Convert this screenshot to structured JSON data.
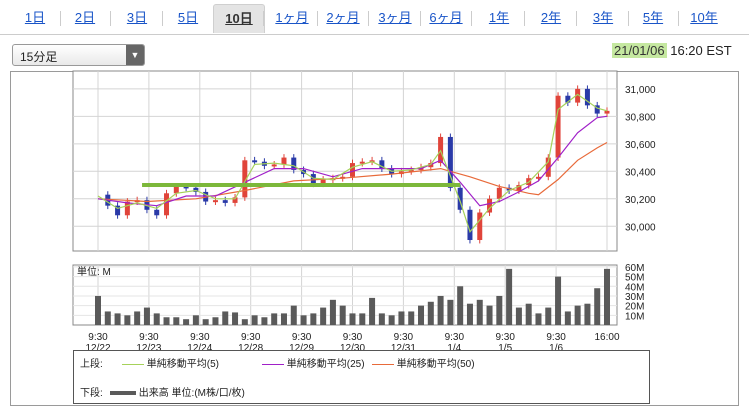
{
  "tabs": [
    "1日",
    "2日",
    "3日",
    "5日",
    "10日",
    "1ヶ月",
    "2ヶ月",
    "3ヶ月",
    "6ヶ月",
    "1年",
    "2年",
    "3年",
    "5年",
    "10年"
  ],
  "active_tab": "10日",
  "interval": {
    "label": "15分足"
  },
  "timestamp": {
    "date": "21/01/06",
    "time": "16:20 EST"
  },
  "colors": {
    "ma5": "#a6d25a",
    "ma25": "#a020c8",
    "ma50": "#e86a3a",
    "up": "#e0443a",
    "down": "#2a3aa8",
    "volume": "#5a5a5a",
    "trend": "#7cb83a"
  },
  "chart_data": {
    "type": "line",
    "x_ticks": [
      {
        "time": "9:30",
        "date": "12/22"
      },
      {
        "time": "9:30",
        "date": "12/23"
      },
      {
        "time": "9:30",
        "date": "12/24"
      },
      {
        "time": "9:30",
        "date": "12/28"
      },
      {
        "time": "9:30",
        "date": "12/29"
      },
      {
        "time": "9:30",
        "date": "12/30"
      },
      {
        "time": "9:30",
        "date": "12/31"
      },
      {
        "time": "9:30",
        "date": "1/4"
      },
      {
        "time": "9:30",
        "date": "1/5"
      },
      {
        "time": "9:30",
        "date": "1/6"
      },
      {
        "time": "16:00",
        "date": ""
      }
    ],
    "price_axis": {
      "ticks": [
        "31,000",
        "30,800",
        "30,600",
        "30,400",
        "30,200",
        "30,000"
      ],
      "tick_values": [
        31000,
        30800,
        30600,
        30400,
        30200,
        30000
      ],
      "ylim": [
        29820,
        31130
      ]
    },
    "volume_axis": {
      "label": "単位: M",
      "ticks": [
        "60M",
        "50M",
        "40M",
        "30M",
        "20M",
        "10M"
      ],
      "tick_values": [
        60,
        50,
        40,
        30,
        20,
        10
      ],
      "ylim": [
        0,
        62
      ]
    },
    "price_path": [
      [
        0,
        30230
      ],
      [
        1,
        30150
      ],
      [
        2,
        30080
      ],
      [
        3,
        30180
      ],
      [
        4,
        30190
      ],
      [
        5,
        30120
      ],
      [
        6,
        30080
      ],
      [
        7,
        30240
      ],
      [
        8,
        30290
      ],
      [
        9,
        30280
      ],
      [
        10,
        30250
      ],
      [
        11,
        30180
      ],
      [
        12,
        30190
      ],
      [
        13,
        30170
      ],
      [
        14,
        30210
      ],
      [
        15,
        30480
      ],
      [
        16,
        30470
      ],
      [
        17,
        30440
      ],
      [
        18,
        30450
      ],
      [
        19,
        30500
      ],
      [
        20,
        30410
      ],
      [
        21,
        30380
      ],
      [
        22,
        30310
      ],
      [
        23,
        30340
      ],
      [
        24,
        30350
      ],
      [
        25,
        30360
      ],
      [
        26,
        30460
      ],
      [
        27,
        30470
      ],
      [
        28,
        30480
      ],
      [
        29,
        30420
      ],
      [
        30,
        30380
      ],
      [
        31,
        30400
      ],
      [
        32,
        30410
      ],
      [
        33,
        30430
      ],
      [
        34,
        30460
      ],
      [
        35,
        30650
      ],
      [
        36,
        30280
      ],
      [
        37,
        30120
      ],
      [
        38,
        29900
      ],
      [
        39,
        30100
      ],
      [
        40,
        30200
      ],
      [
        41,
        30280
      ],
      [
        42,
        30260
      ],
      [
        43,
        30300
      ],
      [
        44,
        30350
      ],
      [
        45,
        30360
      ],
      [
        46,
        30500
      ],
      [
        47,
        30950
      ],
      [
        48,
        30900
      ],
      [
        49,
        31000
      ],
      [
        50,
        30880
      ],
      [
        51,
        30820
      ],
      [
        52,
        30840
      ]
    ],
    "ma5": [
      [
        0,
        30220
      ],
      [
        2,
        30130
      ],
      [
        4,
        30170
      ],
      [
        6,
        30130
      ],
      [
        8,
        30240
      ],
      [
        10,
        30260
      ],
      [
        12,
        30200
      ],
      [
        14,
        30200
      ],
      [
        16,
        30450
      ],
      [
        18,
        30460
      ],
      [
        20,
        30440
      ],
      [
        22,
        30350
      ],
      [
        24,
        30340
      ],
      [
        26,
        30430
      ],
      [
        28,
        30470
      ],
      [
        30,
        30400
      ],
      [
        32,
        30410
      ],
      [
        34,
        30450
      ],
      [
        35,
        30550
      ],
      [
        37,
        30180
      ],
      [
        38,
        29960
      ],
      [
        40,
        30130
      ],
      [
        42,
        30260
      ],
      [
        44,
        30320
      ],
      [
        46,
        30470
      ],
      [
        47,
        30850
      ],
      [
        49,
        30960
      ],
      [
        51,
        30860
      ],
      [
        52,
        30840
      ]
    ],
    "ma25": [
      [
        0,
        30200
      ],
      [
        3,
        30170
      ],
      [
        6,
        30150
      ],
      [
        9,
        30220
      ],
      [
        12,
        30220
      ],
      [
        15,
        30320
      ],
      [
        18,
        30420
      ],
      [
        21,
        30420
      ],
      [
        24,
        30360
      ],
      [
        27,
        30420
      ],
      [
        30,
        30420
      ],
      [
        33,
        30420
      ],
      [
        35,
        30480
      ],
      [
        37,
        30320
      ],
      [
        39,
        30150
      ],
      [
        41,
        30180
      ],
      [
        43,
        30250
      ],
      [
        45,
        30330
      ],
      [
        47,
        30500
      ],
      [
        49,
        30680
      ],
      [
        51,
        30790
      ],
      [
        52,
        30800
      ]
    ],
    "ma50": [
      [
        0,
        30200
      ],
      [
        5,
        30180
      ],
      [
        10,
        30200
      ],
      [
        15,
        30260
      ],
      [
        20,
        30330
      ],
      [
        25,
        30350
      ],
      [
        30,
        30380
      ],
      [
        35,
        30420
      ],
      [
        38,
        30360
      ],
      [
        41,
        30290
      ],
      [
        44,
        30240
      ],
      [
        45,
        30230
      ],
      [
        47,
        30340
      ],
      [
        49,
        30480
      ],
      [
        51,
        30570
      ],
      [
        52,
        30610
      ]
    ],
    "trendline": {
      "x": [
        4.5,
        37
      ],
      "y": 30300
    },
    "volume": [
      [
        0,
        30
      ],
      [
        1,
        14
      ],
      [
        2,
        12
      ],
      [
        3,
        10
      ],
      [
        4,
        14
      ],
      [
        5,
        18
      ],
      [
        6,
        12
      ],
      [
        7,
        8
      ],
      [
        8,
        8
      ],
      [
        9,
        6
      ],
      [
        10,
        10
      ],
      [
        11,
        6
      ],
      [
        12,
        8
      ],
      [
        13,
        14
      ],
      [
        14,
        13
      ],
      [
        15,
        6
      ],
      [
        16,
        10
      ],
      [
        17,
        8
      ],
      [
        18,
        12
      ],
      [
        19,
        12
      ],
      [
        20,
        20
      ],
      [
        21,
        10
      ],
      [
        22,
        12
      ],
      [
        23,
        18
      ],
      [
        24,
        26
      ],
      [
        25,
        20
      ],
      [
        26,
        12
      ],
      [
        27,
        12
      ],
      [
        28,
        28
      ],
      [
        29,
        12
      ],
      [
        30,
        10
      ],
      [
        31,
        14
      ],
      [
        32,
        14
      ],
      [
        33,
        20
      ],
      [
        34,
        24
      ],
      [
        35,
        30
      ],
      [
        36,
        26
      ],
      [
        37,
        40
      ],
      [
        38,
        22
      ],
      [
        39,
        26
      ],
      [
        40,
        20
      ],
      [
        41,
        30
      ],
      [
        42,
        58
      ],
      [
        43,
        18
      ],
      [
        44,
        22
      ],
      [
        45,
        12
      ],
      [
        46,
        18
      ],
      [
        47,
        50
      ],
      [
        48,
        14
      ],
      [
        49,
        20
      ],
      [
        50,
        22
      ],
      [
        51,
        38
      ],
      [
        52,
        58
      ]
    ],
    "legend": {
      "upper_label": "上段:",
      "lower_label": "下段:",
      "items": [
        {
          "label": "単純移動平均(5)"
        },
        {
          "label": "単純移動平均(25)"
        },
        {
          "label": "単純移動平均(50)"
        }
      ],
      "volume_label": "出来高 単位:(M株/口/枚)"
    }
  }
}
